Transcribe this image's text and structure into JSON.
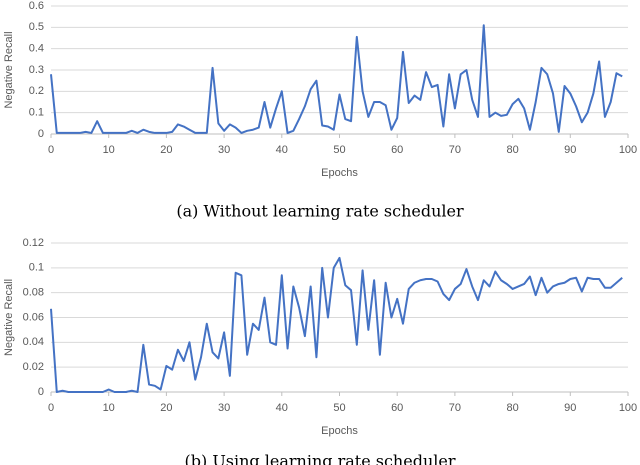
{
  "chart_data": [
    {
      "type": "line",
      "x_label": "Epochs",
      "y_label": "Negative Recall",
      "caption": "(a) Without learning rate scheduler",
      "x": [
        0,
        1,
        2,
        3,
        4,
        5,
        6,
        7,
        8,
        9,
        10,
        11,
        12,
        13,
        14,
        15,
        16,
        17,
        18,
        19,
        20,
        21,
        22,
        23,
        24,
        25,
        26,
        27,
        28,
        29,
        30,
        31,
        32,
        33,
        34,
        35,
        36,
        37,
        38,
        39,
        40,
        41,
        42,
        43,
        44,
        45,
        46,
        47,
        48,
        49,
        50,
        51,
        52,
        53,
        54,
        55,
        56,
        57,
        58,
        59,
        60,
        61,
        62,
        63,
        64,
        65,
        66,
        67,
        68,
        69,
        70,
        71,
        72,
        73,
        74,
        75,
        76,
        77,
        78,
        79,
        80,
        81,
        82,
        83,
        84,
        85,
        86,
        87,
        88,
        89,
        90,
        91,
        92,
        93,
        94,
        95,
        96,
        97,
        98,
        99
      ],
      "series": [
        {
          "name": "Negative Recall",
          "color": "#4472c4",
          "values": [
            0.28,
            0.005,
            0.005,
            0.005,
            0.005,
            0.005,
            0.01,
            0.005,
            0.06,
            0.005,
            0.005,
            0.005,
            0.005,
            0.005,
            0.015,
            0.005,
            0.02,
            0.01,
            0.005,
            0.005,
            0.005,
            0.01,
            0.045,
            0.035,
            0.02,
            0.005,
            0.005,
            0.005,
            0.31,
            0.05,
            0.015,
            0.045,
            0.03,
            0.005,
            0.015,
            0.02,
            0.03,
            0.15,
            0.03,
            0.12,
            0.2,
            0.005,
            0.015,
            0.07,
            0.13,
            0.21,
            0.25,
            0.04,
            0.035,
            0.02,
            0.185,
            0.07,
            0.06,
            0.455,
            0.2,
            0.08,
            0.15,
            0.15,
            0.135,
            0.02,
            0.075,
            0.385,
            0.145,
            0.18,
            0.16,
            0.29,
            0.22,
            0.23,
            0.035,
            0.28,
            0.12,
            0.28,
            0.3,
            0.16,
            0.08,
            0.51,
            0.08,
            0.1,
            0.085,
            0.09,
            0.14,
            0.165,
            0.12,
            0.02,
            0.15,
            0.31,
            0.28,
            0.19,
            0.01,
            0.225,
            0.19,
            0.13,
            0.055,
            0.1,
            0.19,
            0.34,
            0.08,
            0.15,
            0.285,
            0.27
          ]
        }
      ],
      "xlim": [
        0,
        100
      ],
      "xticks": [
        0,
        10,
        20,
        30,
        40,
        50,
        60,
        70,
        80,
        90,
        100
      ],
      "ylim": [
        0,
        0.6
      ],
      "yticks": [
        0,
        0.1,
        0.2,
        0.3,
        0.4,
        0.5,
        0.6
      ],
      "grid": true
    },
    {
      "type": "line",
      "x_label": "Epochs",
      "y_label": "Negative Recall",
      "caption": "(b) Using learning rate scheduler",
      "x": [
        0,
        1,
        2,
        3,
        4,
        5,
        6,
        7,
        8,
        9,
        10,
        11,
        12,
        13,
        14,
        15,
        16,
        17,
        18,
        19,
        20,
        21,
        22,
        23,
        24,
        25,
        26,
        27,
        28,
        29,
        30,
        31,
        32,
        33,
        34,
        35,
        36,
        37,
        38,
        39,
        40,
        41,
        42,
        43,
        44,
        45,
        46,
        47,
        48,
        49,
        50,
        51,
        52,
        53,
        54,
        55,
        56,
        57,
        58,
        59,
        60,
        61,
        62,
        63,
        64,
        65,
        66,
        67,
        68,
        69,
        70,
        71,
        72,
        73,
        74,
        75,
        76,
        77,
        78,
        79,
        80,
        81,
        82,
        83,
        84,
        85,
        86,
        87,
        88,
        89,
        90,
        91,
        92,
        93,
        94,
        95,
        96,
        97,
        98,
        99
      ],
      "series": [
        {
          "name": "Negative Recall",
          "color": "#4472c4",
          "values": [
            0.067,
            0,
            0.001,
            0,
            0,
            0,
            0,
            0,
            0,
            0,
            0.002,
            0,
            0,
            0,
            0.001,
            0,
            0.038,
            0.006,
            0.005,
            0.002,
            0.021,
            0.018,
            0.034,
            0.025,
            0.04,
            0.01,
            0.028,
            0.055,
            0.032,
            0.027,
            0.048,
            0.013,
            0.096,
            0.094,
            0.03,
            0.055,
            0.05,
            0.076,
            0.04,
            0.038,
            0.094,
            0.035,
            0.085,
            0.068,
            0.045,
            0.085,
            0.028,
            0.1,
            0.06,
            0.1,
            0.108,
            0.086,
            0.082,
            0.038,
            0.098,
            0.05,
            0.09,
            0.03,
            0.088,
            0.06,
            0.075,
            0.055,
            0.083,
            0.088,
            0.09,
            0.091,
            0.091,
            0.089,
            0.079,
            0.074,
            0.083,
            0.087,
            0.099,
            0.085,
            0.074,
            0.09,
            0.085,
            0.097,
            0.09,
            0.087,
            0.083,
            0.085,
            0.087,
            0.093,
            0.078,
            0.092,
            0.08,
            0.085,
            0.087,
            0.088,
            0.091,
            0.092,
            0.081,
            0.092,
            0.091,
            0.091,
            0.084,
            0.084,
            0.088,
            0.092
          ]
        }
      ],
      "xlim": [
        0,
        100
      ],
      "xticks": [
        0,
        10,
        20,
        30,
        40,
        50,
        60,
        70,
        80,
        90,
        100
      ],
      "ylim": [
        0,
        0.12
      ],
      "yticks": [
        0,
        0.02,
        0.04,
        0.06,
        0.08,
        0.1,
        0.12
      ],
      "grid": true
    }
  ]
}
